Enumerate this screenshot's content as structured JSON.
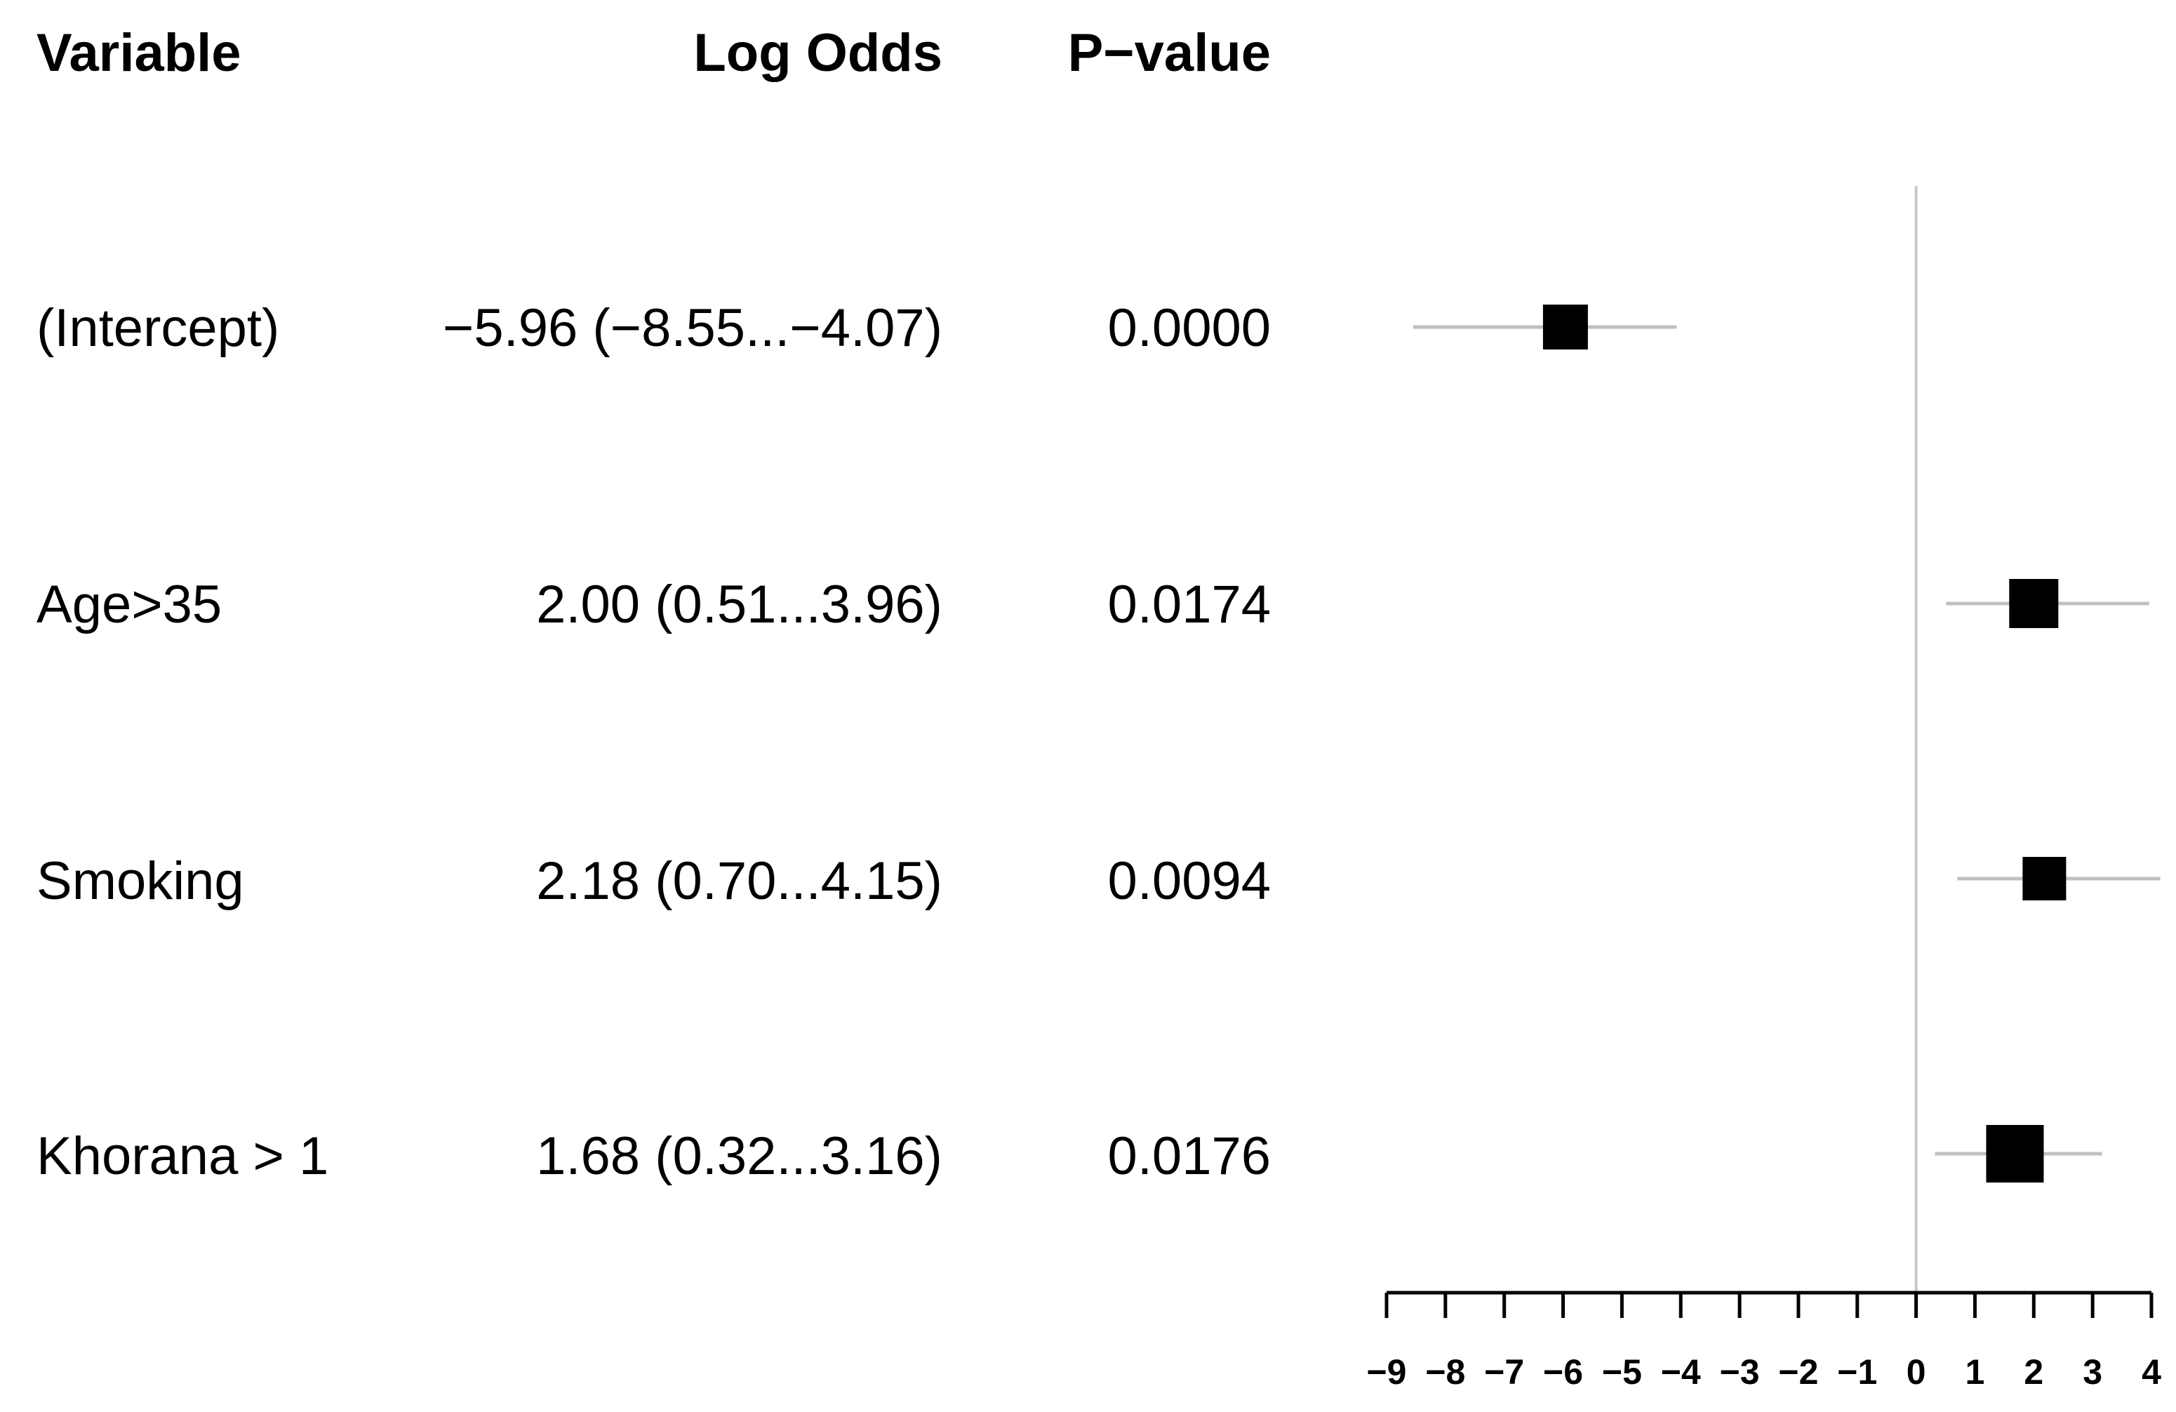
{
  "table": {
    "headers": {
      "variable": "Variable",
      "log_odds": "Log Odds",
      "p_value": "P−value"
    },
    "rows": [
      {
        "variable": "(Intercept)",
        "log_odds": "−5.96 (−8.55...−4.07)",
        "p_value": "0.0000"
      },
      {
        "variable": "Age>35",
        "log_odds": "2.00 (0.51...3.96)",
        "p_value": "0.0174"
      },
      {
        "variable": "Smoking",
        "log_odds": "2.18 (0.70...4.15)",
        "p_value": "0.0094"
      },
      {
        "variable": "Khorana > 1",
        "log_odds": "1.68 (0.32...3.16)",
        "p_value": "0.0176"
      }
    ]
  },
  "chart_data": {
    "type": "forest",
    "categories": [
      "(Intercept)",
      "Age>35",
      "Smoking",
      "Khorana > 1"
    ],
    "estimates": [
      -5.96,
      2.0,
      2.18,
      1.68
    ],
    "lower": [
      -8.55,
      0.51,
      0.7,
      0.32
    ],
    "upper": [
      -4.07,
      3.96,
      4.15,
      3.16
    ],
    "reference_line": 0,
    "xlim": [
      -9,
      4
    ],
    "ticks": [
      -9,
      -8,
      -7,
      -6,
      -5,
      -4,
      -3,
      -2,
      -1,
      0,
      1,
      2,
      3,
      4
    ],
    "tick_labels": [
      "−9",
      "−8",
      "−7",
      "−6",
      "−5",
      "−4",
      "−3",
      "−2",
      "−1",
      "0",
      "1",
      "2",
      "3",
      "4"
    ],
    "colors": {
      "marker": "#000000",
      "ci_line": "#c0c0c0",
      "reference_line": "#c8c8c8",
      "axis": "#000000"
    }
  }
}
